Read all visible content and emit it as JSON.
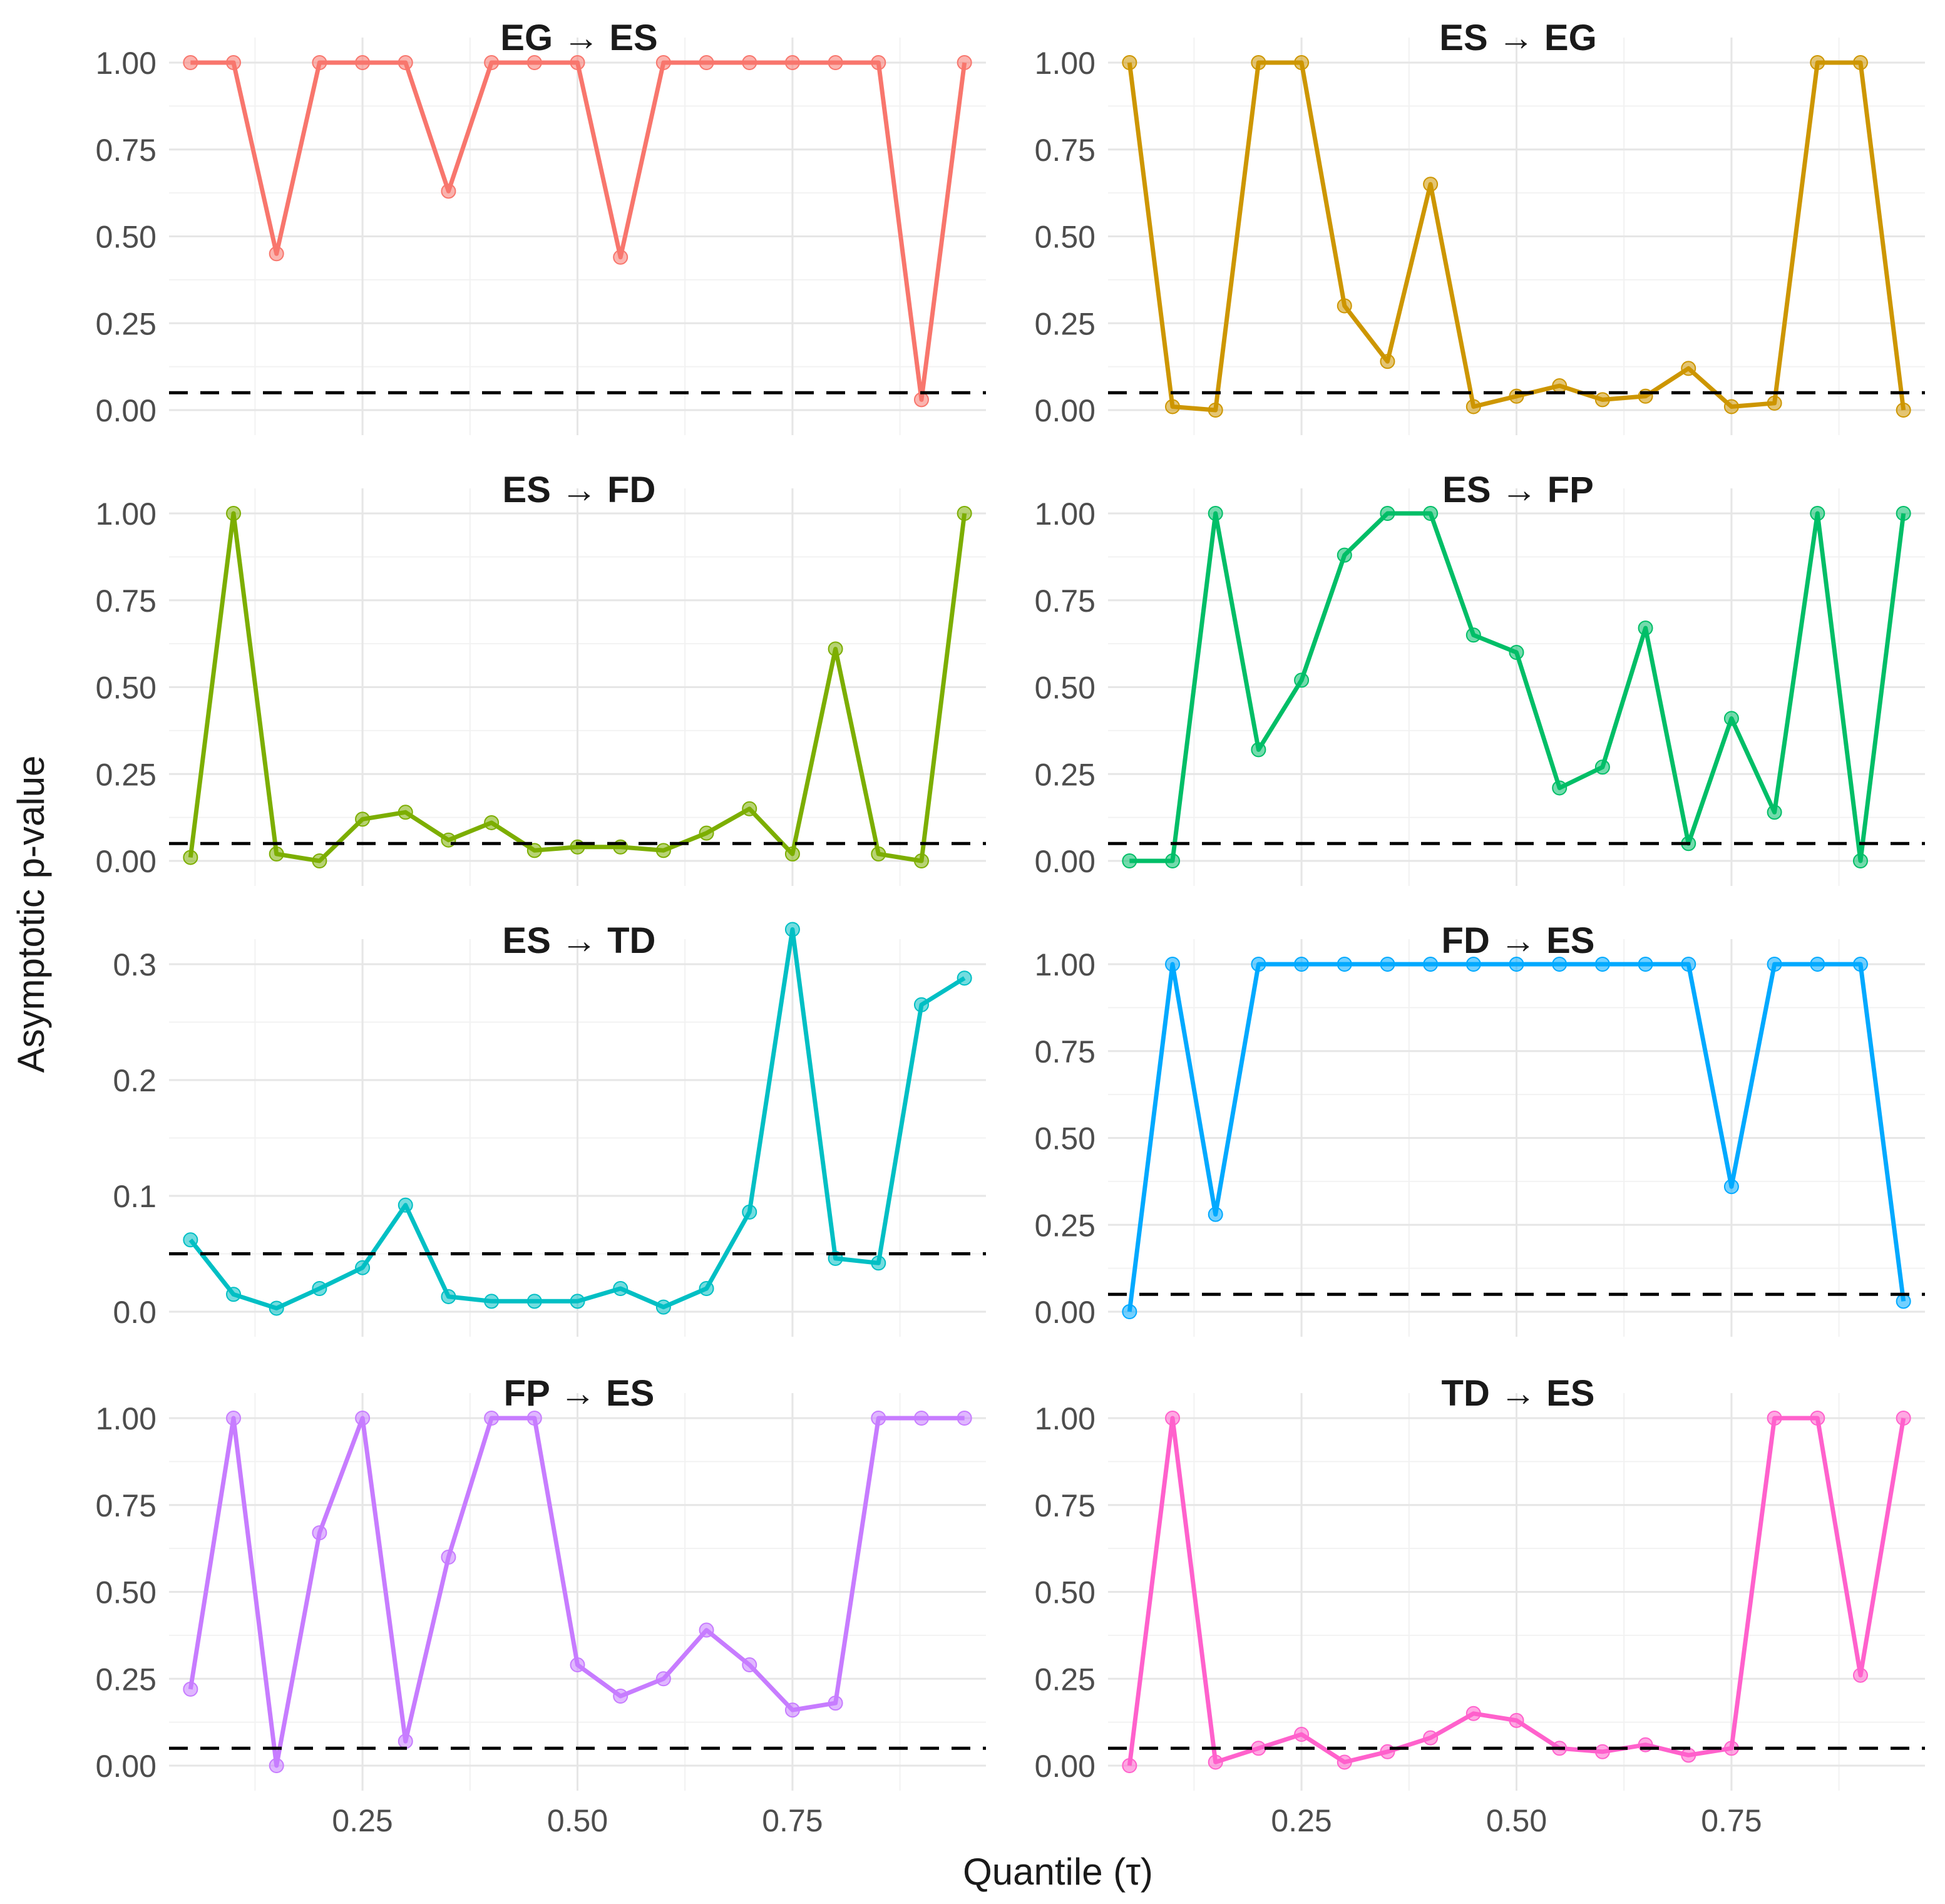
{
  "chart_data": {
    "type": "line",
    "xlabel": "Quantile (τ)",
    "ylabel": "Asymptotic p-value",
    "x": [
      0.05,
      0.1,
      0.15,
      0.2,
      0.25,
      0.3,
      0.35,
      0.4,
      0.45,
      0.5,
      0.55,
      0.6,
      0.65,
      0.7,
      0.75,
      0.8,
      0.85,
      0.9,
      0.95
    ],
    "x_ticks": [
      "0.25",
      "0.50",
      "0.75"
    ],
    "x_tick_values": [
      0.25,
      0.5,
      0.75
    ],
    "xlim": [
      0.025,
      0.975
    ],
    "reference_line": 0.05,
    "panels": [
      {
        "title": "EG → ES",
        "color": "#F8766D",
        "ylim": [
          0,
          1
        ],
        "y_ticks": [
          "0.00",
          "0.25",
          "0.50",
          "0.75",
          "1.00"
        ],
        "y_tick_values": [
          0,
          0.25,
          0.5,
          0.75,
          1
        ],
        "values": [
          1.0,
          1.0,
          0.45,
          1.0,
          1.0,
          1.0,
          0.63,
          1.0,
          1.0,
          1.0,
          0.44,
          1.0,
          1.0,
          1.0,
          1.0,
          1.0,
          1.0,
          0.03,
          1.0
        ]
      },
      {
        "title": "ES → EG",
        "color": "#CD9600",
        "ylim": [
          0,
          1
        ],
        "y_ticks": [
          "0.00",
          "0.25",
          "0.50",
          "0.75",
          "1.00"
        ],
        "y_tick_values": [
          0,
          0.25,
          0.5,
          0.75,
          1
        ],
        "values": [
          1.0,
          0.01,
          0.0,
          1.0,
          1.0,
          0.3,
          0.14,
          0.65,
          0.01,
          0.04,
          0.07,
          0.03,
          0.04,
          0.12,
          0.01,
          0.02,
          1.0,
          1.0,
          0.0
        ]
      },
      {
        "title": "ES → FD",
        "color": "#7CAE00",
        "ylim": [
          0,
          1
        ],
        "y_ticks": [
          "0.00",
          "0.25",
          "0.50",
          "0.75",
          "1.00"
        ],
        "y_tick_values": [
          0,
          0.25,
          0.5,
          0.75,
          1
        ],
        "values": [
          0.01,
          1.0,
          0.02,
          0.0,
          0.12,
          0.14,
          0.06,
          0.11,
          0.03,
          0.04,
          0.04,
          0.03,
          0.08,
          0.15,
          0.02,
          0.61,
          0.02,
          0.0,
          1.0
        ]
      },
      {
        "title": "ES → FP",
        "color": "#00BE67",
        "ylim": [
          0,
          1
        ],
        "y_ticks": [
          "0.00",
          "0.25",
          "0.50",
          "0.75",
          "1.00"
        ],
        "y_tick_values": [
          0,
          0.25,
          0.5,
          0.75,
          1
        ],
        "values": [
          0.0,
          0.0,
          1.0,
          0.32,
          0.52,
          0.88,
          1.0,
          1.0,
          0.65,
          0.6,
          0.21,
          0.27,
          0.67,
          0.05,
          0.41,
          0.14,
          1.0,
          0.0,
          1.0
        ]
      },
      {
        "title": "ES → TD",
        "color": "#00BFC4",
        "ylim": [
          0,
          0.33
        ],
        "y_ticks": [
          "0.0",
          "0.1",
          "0.2",
          "0.3"
        ],
        "y_tick_values": [
          0,
          0.1,
          0.2,
          0.3
        ],
        "values": [
          0.062,
          0.015,
          0.003,
          0.02,
          0.038,
          0.092,
          0.013,
          0.009,
          0.009,
          0.009,
          0.02,
          0.004,
          0.02,
          0.086,
          0.33,
          0.046,
          0.042,
          0.265,
          0.288
        ]
      },
      {
        "title": "FD → ES",
        "color": "#00A9FF",
        "ylim": [
          0,
          1
        ],
        "y_ticks": [
          "0.00",
          "0.25",
          "0.50",
          "0.75",
          "1.00"
        ],
        "y_tick_values": [
          0,
          0.25,
          0.5,
          0.75,
          1
        ],
        "values": [
          0.0,
          1.0,
          0.28,
          1.0,
          1.0,
          1.0,
          1.0,
          1.0,
          1.0,
          1.0,
          1.0,
          1.0,
          1.0,
          1.0,
          0.36,
          1.0,
          1.0,
          1.0,
          0.03
        ]
      },
      {
        "title": "FP → ES",
        "color": "#C77CFF",
        "ylim": [
          0,
          1
        ],
        "y_ticks": [
          "0.00",
          "0.25",
          "0.50",
          "0.75",
          "1.00"
        ],
        "y_tick_values": [
          0,
          0.25,
          0.5,
          0.75,
          1
        ],
        "values": [
          0.22,
          1.0,
          0.0,
          0.67,
          1.0,
          0.07,
          0.6,
          1.0,
          1.0,
          0.29,
          0.2,
          0.25,
          0.39,
          0.29,
          0.16,
          0.18,
          1.0,
          1.0,
          1.0
        ]
      },
      {
        "title": "TD → ES",
        "color": "#FF61CC",
        "ylim": [
          0,
          1
        ],
        "y_ticks": [
          "0.00",
          "0.25",
          "0.50",
          "0.75",
          "1.00"
        ],
        "y_tick_values": [
          0,
          0.25,
          0.5,
          0.75,
          1
        ],
        "values": [
          0.0,
          1.0,
          0.01,
          0.05,
          0.09,
          0.01,
          0.04,
          0.08,
          0.15,
          0.13,
          0.05,
          0.04,
          0.06,
          0.03,
          0.05,
          1.0,
          1.0,
          0.26,
          1.0
        ]
      }
    ]
  }
}
